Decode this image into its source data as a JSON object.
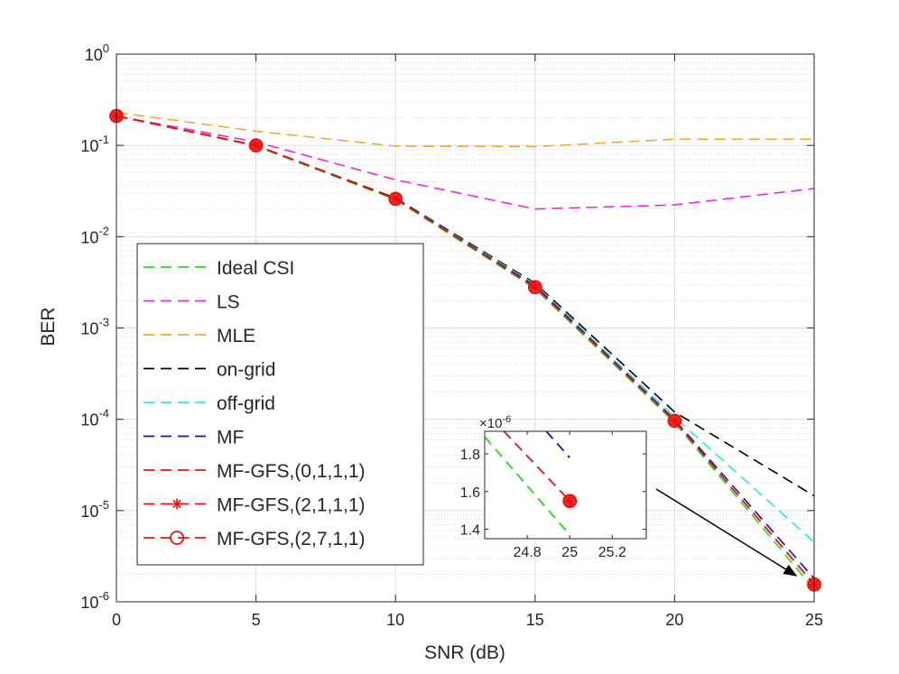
{
  "chart_data": {
    "type": "line",
    "xlabel": "SNR (dB)",
    "ylabel": "BER",
    "x_ticks": [
      0,
      5,
      10,
      15,
      20,
      25
    ],
    "xlim": [
      0,
      25
    ],
    "ylim": [
      1e-06,
      1
    ],
    "y_scale": "log",
    "y_ticks": [
      {
        "base": "10",
        "exp": "0",
        "value": 1
      },
      {
        "base": "10",
        "exp": "-1",
        "value": 0.1
      },
      {
        "base": "10",
        "exp": "-2",
        "value": 0.01
      },
      {
        "base": "10",
        "exp": "-3",
        "value": 0.001
      },
      {
        "base": "10",
        "exp": "-4",
        "value": 0.0001
      },
      {
        "base": "10",
        "exp": "-5",
        "value": 1e-05
      },
      {
        "base": "10",
        "exp": "-6",
        "value": 1e-06
      }
    ],
    "grid": true,
    "legend_position": "lower-left",
    "x": [
      0,
      5,
      10,
      15,
      20,
      25
    ],
    "series": [
      {
        "name": "Ideal CSI",
        "color": "#22dd22",
        "marker": "none",
        "values": [
          0.21,
          0.098,
          0.0255,
          0.0027,
          9.2e-05,
          1.37e-06
        ]
      },
      {
        "name": "LS",
        "color": "#ee22ee",
        "marker": "none",
        "values": [
          0.21,
          0.109,
          0.042,
          0.0201,
          0.0223,
          0.0337
        ]
      },
      {
        "name": "MLE",
        "color": "#eeaa33",
        "marker": "none",
        "values": [
          0.23,
          0.143,
          0.098,
          0.097,
          0.117,
          0.117
        ]
      },
      {
        "name": "on-grid",
        "color": "#000000",
        "marker": "none",
        "values": [
          0.21,
          0.1,
          0.0265,
          0.0031,
          0.00012,
          1.45e-05
        ]
      },
      {
        "name": "off-grid",
        "color": "#22eeee",
        "marker": "none",
        "values": [
          0.21,
          0.1,
          0.026,
          0.003,
          0.000105,
          4.5e-06
        ]
      },
      {
        "name": "MF",
        "color": "#1111cc",
        "marker": "none",
        "values": [
          0.21,
          0.1,
          0.026,
          0.0029,
          9.9e-05,
          1.8e-06
        ]
      },
      {
        "name": "MF-GFS,(0,1,1,1)",
        "color": "#ee1111",
        "marker": "none",
        "values": [
          0.21,
          0.1,
          0.026,
          0.0028,
          9.6e-05,
          1.55e-06
        ]
      },
      {
        "name": "MF-GFS,(2,1,1,1)",
        "color": "#ee1111",
        "marker": "asterisk",
        "values": [
          0.21,
          0.1,
          0.026,
          0.0028,
          9.6e-05,
          1.55e-06
        ]
      },
      {
        "name": "MF-GFS,(2,7,1,1)",
        "color": "#ee1111",
        "marker": "circle",
        "values": [
          0.21,
          0.1,
          0.026,
          0.0028,
          9.6e-05,
          1.55e-06
        ]
      }
    ],
    "inset": {
      "scale_label_base": "×10",
      "scale_label_exp": "-6",
      "xlim": [
        24.6,
        25.36
      ],
      "ylim": [
        1.35,
        1.92
      ],
      "x_ticks": [
        "24.8",
        "25",
        "25.2"
      ],
      "x_tick_values": [
        24.8,
        25,
        25.2
      ],
      "y_ticks": [
        "1.4",
        "1.6",
        "1.8"
      ],
      "y_tick_values": [
        1.4,
        1.6,
        1.8
      ],
      "series": [
        {
          "name": "Ideal CSI",
          "color": "#22dd22",
          "x": [
            24.6,
            25
          ],
          "values": [
            1.89,
            1.37
          ]
        },
        {
          "name": "MF-GFS,(2,7,1,1)",
          "color": "#ee1111",
          "x": [
            24.69,
            25
          ],
          "values": [
            1.92,
            1.55
          ],
          "end_marker": "circle"
        },
        {
          "name": "MF",
          "color": "#1111cc",
          "x": [
            24.89,
            25
          ],
          "values": [
            1.92,
            1.78
          ]
        }
      ]
    }
  }
}
